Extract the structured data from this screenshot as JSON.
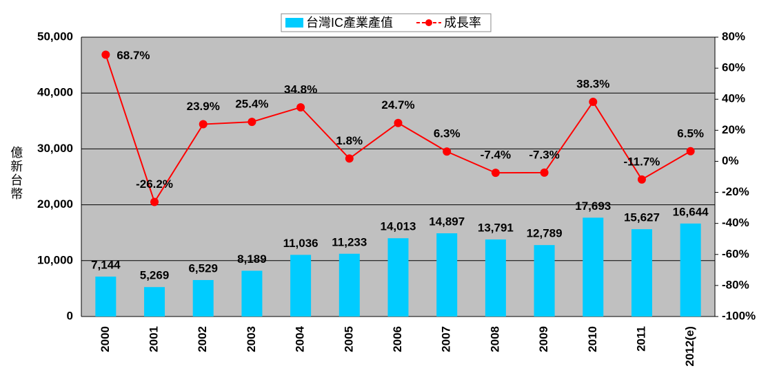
{
  "chart_data": {
    "type": "bar",
    "categories": [
      "2000",
      "2001",
      "2002",
      "2003",
      "2004",
      "2005",
      "2006",
      "2007",
      "2008",
      "2009",
      "2010",
      "2011",
      "2012(e)"
    ],
    "series": [
      {
        "name": "台灣IC產業產值",
        "type": "bar",
        "color": "#00ccff",
        "values": [
          7144,
          5269,
          6529,
          8189,
          11036,
          11233,
          14013,
          14897,
          13791,
          12789,
          17693,
          15627,
          16644
        ],
        "value_labels": [
          "7,144",
          "5,269",
          "6,529",
          "8,189",
          "11,036",
          "11,233",
          "14,013",
          "14,897",
          "13,791",
          "12,789",
          "17,693",
          "15,627",
          "16,644"
        ]
      },
      {
        "name": "成長率",
        "type": "line",
        "color": "#ff0000",
        "axis": "y2",
        "values": [
          68.7,
          -26.2,
          23.9,
          25.4,
          34.8,
          1.8,
          24.7,
          6.3,
          -7.4,
          -7.3,
          38.3,
          -11.7,
          6.5
        ],
        "value_labels": [
          "68.7%",
          "-26.2%",
          "23.9%",
          "25.4%",
          "34.8%",
          "1.8%",
          "24.7%",
          "6.3%",
          "-7.4%",
          "-7.3%",
          "38.3%",
          "-11.7%",
          "6.5%"
        ]
      }
    ],
    "y_label": "億新台幣",
    "ylim": [
      0,
      50000
    ],
    "yticks": [
      0,
      {
        "value": 10000,
        "label": "10,000"
      },
      {
        "value": 20000,
        "label": "20,000"
      },
      {
        "value": 30000,
        "label": "30,000"
      },
      {
        "value": 40000,
        "label": "40,000"
      },
      {
        "value": 50000,
        "label": "50,000"
      }
    ],
    "y2lim": [
      -100,
      80
    ],
    "y2ticks": [
      {
        "value": -100,
        "label": "-100%"
      },
      {
        "value": -80,
        "label": "-80%"
      },
      {
        "value": -60,
        "label": "-60%"
      },
      {
        "value": -40,
        "label": "-40%"
      },
      {
        "value": -20,
        "label": "-20%"
      },
      {
        "value": 0,
        "label": "0%"
      },
      {
        "value": 20,
        "label": "20%"
      },
      {
        "value": 40,
        "label": "40%"
      },
      {
        "value": 60,
        "label": "60%"
      },
      {
        "value": 80,
        "label": "80%"
      }
    ],
    "grid": true,
    "legend": "top"
  }
}
